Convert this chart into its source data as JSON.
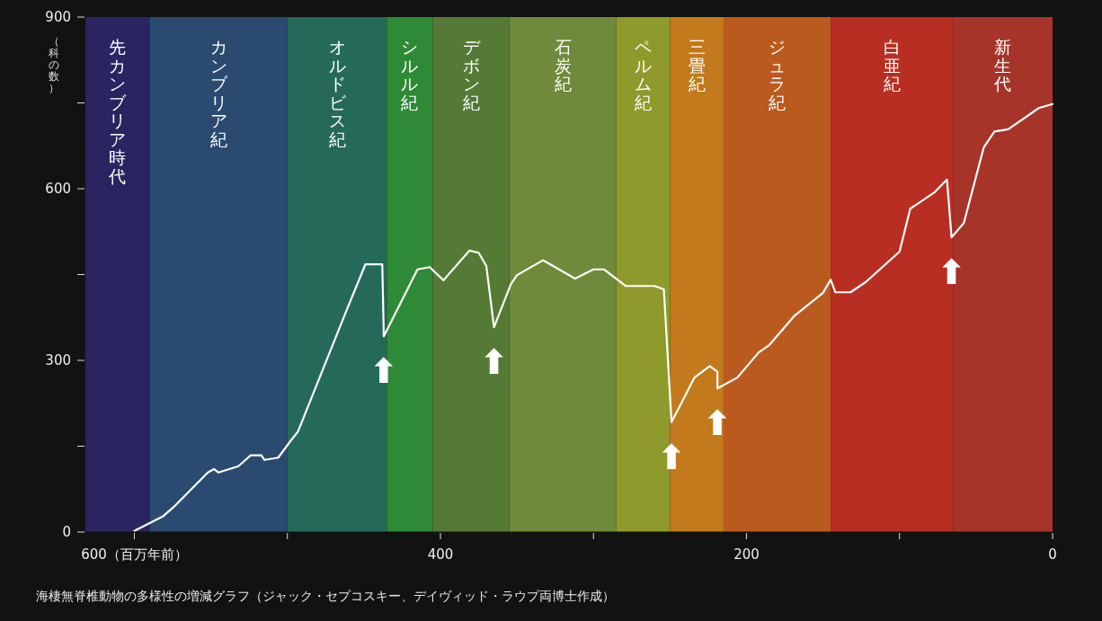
{
  "chart_data": {
    "type": "line",
    "ylabel": "（科の数）",
    "xlim": [
      632,
      0
    ],
    "ylim": [
      0,
      900
    ],
    "xticks": [
      {
        "value": 600,
        "label": "600（百万年前）"
      },
      {
        "value": 500,
        "label": null
      },
      400,
      {
        "value": 300,
        "label": null
      },
      200,
      {
        "value": 100,
        "label": null
      },
      0
    ],
    "yticks": [
      0,
      {
        "value": 150,
        "label": null
      },
      300,
      {
        "value": 450,
        "label": null
      },
      600,
      {
        "value": 750,
        "label": null
      },
      900
    ],
    "grid": false,
    "marker": "none",
    "line_style": "solid",
    "bands": [
      {
        "axis": "x",
        "from": 632,
        "to": 590,
        "label": "先カンブリア時代",
        "color": "#2a2461"
      },
      {
        "axis": "x",
        "from": 590,
        "to": 500,
        "label": "カンブリア紀",
        "color": "#2a4a70"
      },
      {
        "axis": "x",
        "from": 500,
        "to": 435,
        "label": "オルドビス紀",
        "color": "#256a58"
      },
      {
        "axis": "x",
        "from": 435,
        "to": 405,
        "label": "シルル紀",
        "color": "#2e8a36"
      },
      {
        "axis": "x",
        "from": 405,
        "to": 355,
        "label": "デボン紀",
        "color": "#557a36"
      },
      {
        "axis": "x",
        "from": 355,
        "to": 285,
        "label": "石炭紀",
        "color": "#6f8a3a"
      },
      {
        "axis": "x",
        "from": 285,
        "to": 250,
        "label": "ペルム紀",
        "color": "#8f9a2c"
      },
      {
        "axis": "x",
        "from": 250,
        "to": 215,
        "label": "三畳紀",
        "color": "#c27a1c"
      },
      {
        "axis": "x",
        "from": 215,
        "to": 145,
        "label": "ジュラ紀",
        "color": "#bb5a1e"
      },
      {
        "axis": "x",
        "from": 145,
        "to": 65,
        "label": "白亜紀",
        "color": "#b92e22"
      },
      {
        "axis": "x",
        "from": 65,
        "to": 0,
        "label": "新生代",
        "color": "#a63428"
      }
    ],
    "series": [
      {
        "color": "#ffffff",
        "x": [
          600,
          581,
          573,
          552,
          548,
          545,
          532,
          524,
          517,
          515,
          506,
          498,
          493,
          462,
          449,
          438,
          437,
          415,
          407,
          398,
          381,
          375,
          370,
          365,
          354,
          350,
          333,
          312,
          300,
          293,
          279,
          260,
          254,
          249,
          234,
          224,
          219,
          219,
          206,
          192,
          185,
          169,
          150,
          145,
          142,
          132,
          122,
          100,
          93,
          77,
          69,
          66,
          58,
          45,
          38,
          29,
          9,
          0
        ],
        "values": [
          2,
          28,
          47,
          104,
          110,
          104,
          115,
          134,
          134,
          126,
          130,
          159,
          176,
          383,
          468,
          468,
          342,
          459,
          463,
          440,
          492,
          488,
          465,
          358,
          433,
          449,
          475,
          443,
          459,
          459,
          430,
          430,
          424,
          192,
          270,
          290,
          280,
          251,
          270,
          314,
          327,
          377,
          418,
          441,
          419,
          419,
          437,
          490,
          565,
          594,
          616,
          515,
          540,
          672,
          700,
          704,
          741,
          748
        ]
      }
    ],
    "annotations": [
      {
        "text": "⬆",
        "x": 437,
        "y": 342
      },
      {
        "text": "⬆",
        "x": 365,
        "y": 358
      },
      {
        "text": "⬆",
        "x": 249,
        "y": 192
      },
      {
        "text": "⬆",
        "x": 219,
        "y": 251
      },
      {
        "text": "⬆",
        "x": 66,
        "y": 515
      },
      "海棲無脊椎動物の多様性の増減グラフ（ジャック・セプコスキー、デイヴィッド・ラウプ両博士作成）"
    ]
  }
}
